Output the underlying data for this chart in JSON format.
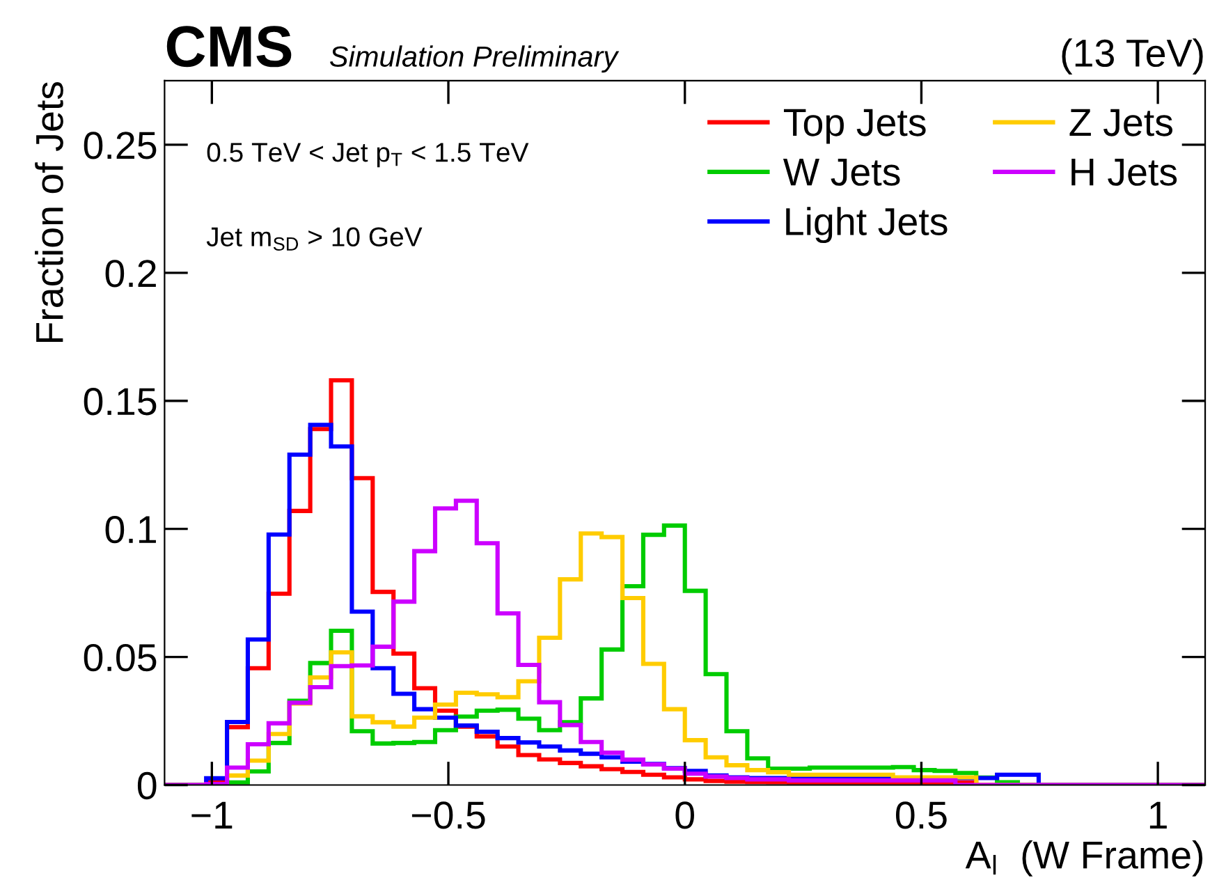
{
  "chart_data": {
    "type": "histogram",
    "title": "CMS",
    "subtitle": "Simulation Preliminary",
    "xlabel": "A$_{l}$  (W Frame)",
    "ylabel": "Fraction of Jets",
    "annotations": [
      "(13 TeV)",
      "0.5 TeV < Jet p$_{T}$ < 1.5 TeV",
      "Jet m$_{SD}$ > 10 GeV"
    ],
    "bins": [
      -1.1,
      -1.056,
      -1.012,
      -0.968,
      -0.924,
      -0.88,
      -0.836,
      -0.792,
      -0.748,
      -0.704,
      -0.66,
      -0.616,
      -0.572,
      -0.528,
      -0.484,
      -0.44,
      -0.396,
      -0.352,
      -0.308,
      -0.264,
      -0.22,
      -0.176,
      -0.132,
      -0.088,
      -0.044,
      0,
      0.044,
      0.088,
      0.132,
      0.176,
      0.22,
      0.264,
      0.308,
      0.352,
      0.396,
      0.44,
      0.484,
      0.528,
      0.572,
      0.616,
      0.66,
      0.704,
      0.748,
      0.792,
      0.836,
      0.88,
      0.924,
      0.968,
      1.012,
      1.056,
      1.1
    ],
    "series": [
      {
        "name": "Top Jets",
        "color": "#ff0000",
        "values": [
          0,
          0,
          0.001,
          0.0226,
          0.0456,
          0.0747,
          0.107,
          0.139,
          0.158,
          0.1198,
          0.0754,
          0.0513,
          0.0378,
          0.029,
          0.0228,
          0.019,
          0.015,
          0.0117,
          0.01,
          0.0086,
          0.0073,
          0.0062,
          0.0051,
          0.004,
          0.003,
          0.0022,
          0.0016,
          0.0013,
          0.0012,
          0.0011,
          0.001,
          0.001,
          0.001,
          0.001,
          0.001,
          0.001,
          0.001,
          0.001,
          0.001,
          0,
          0,
          0,
          0,
          0,
          0,
          0,
          0,
          0,
          0,
          0
        ]
      },
      {
        "name": "W Jets",
        "color": "#00cc00",
        "values": [
          0,
          0,
          0.0004,
          0.001,
          0.0053,
          0.0164,
          0.0329,
          0.0476,
          0.0602,
          0.021,
          0.0162,
          0.0164,
          0.0168,
          0.0214,
          0.0267,
          0.029,
          0.0294,
          0.0259,
          0.0214,
          0.0245,
          0.0338,
          0.0529,
          0.0776,
          0.0977,
          0.1013,
          0.0758,
          0.0433,
          0.021,
          0.0104,
          0.0064,
          0.0064,
          0.0068,
          0.0068,
          0.0068,
          0.0068,
          0.007,
          0.0058,
          0.0055,
          0.0047,
          0.0029,
          0.0011,
          0,
          0,
          0,
          0,
          0,
          0,
          0,
          0,
          0
        ]
      },
      {
        "name": "Light Jets",
        "color": "#0000ff",
        "values": [
          0,
          0,
          0.0026,
          0.0246,
          0.0568,
          0.0978,
          0.129,
          0.1406,
          0.1322,
          0.0677,
          0.0456,
          0.0356,
          0.0296,
          0.0263,
          0.0232,
          0.0208,
          0.0183,
          0.0166,
          0.015,
          0.0135,
          0.0122,
          0.0108,
          0.0091,
          0.0082,
          0.0066,
          0.0055,
          0.0037,
          0.003,
          0.0027,
          0.0027,
          0.0027,
          0.0027,
          0.0027,
          0.0027,
          0.0027,
          0.0027,
          0.0027,
          0.0027,
          0.0027,
          0.0027,
          0.004,
          0.004,
          0,
          0,
          0,
          0,
          0,
          0,
          0,
          0
        ]
      },
      {
        "name": "Z Jets",
        "color": "#ffcc00",
        "values": [
          0,
          0,
          0.0004,
          0.0037,
          0.0095,
          0.0199,
          0.0318,
          0.042,
          0.0518,
          0.0268,
          0.0245,
          0.0228,
          0.0263,
          0.0314,
          0.036,
          0.0354,
          0.0343,
          0.0405,
          0.0575,
          0.0803,
          0.0982,
          0.0968,
          0.073,
          0.0473,
          0.0296,
          0.0175,
          0.0108,
          0.0077,
          0.0058,
          0.005,
          0.004,
          0.004,
          0.004,
          0.004,
          0.004,
          0.003,
          0.003,
          0.003,
          0.003,
          0,
          0,
          0,
          0,
          0,
          0,
          0,
          0,
          0,
          0,
          0
        ]
      },
      {
        "name": "H Jets",
        "color": "#cc00ff",
        "values": [
          0,
          0,
          0.0004,
          0.0068,
          0.0159,
          0.0241,
          0.0321,
          0.0382,
          0.0464,
          0.0467,
          0.054,
          0.0716,
          0.0913,
          0.108,
          0.111,
          0.0944,
          0.067,
          0.0469,
          0.0323,
          0.0234,
          0.0168,
          0.0126,
          0.0099,
          0.008,
          0.0064,
          0.0044,
          0.0033,
          0.0027,
          0.0022,
          0.0022,
          0.0018,
          0.0018,
          0.0018,
          0.0018,
          0.0018,
          0.0018,
          0.0018,
          0.0018,
          0,
          0,
          0,
          0,
          0,
          0,
          0,
          0,
          0,
          0,
          0,
          0
        ]
      }
    ],
    "xlim": [
      -1.1,
      1.1
    ],
    "ylim": [
      0,
      0.275
    ],
    "xticks": [
      {
        "value": -1,
        "label": "−1"
      },
      {
        "value": -0.5,
        "label": "−0.5"
      },
      0,
      0.5,
      1
    ],
    "yticks": [
      0,
      0.05,
      0.1,
      0.15,
      0.2,
      0.25
    ],
    "grid": false,
    "legend": "top right"
  }
}
